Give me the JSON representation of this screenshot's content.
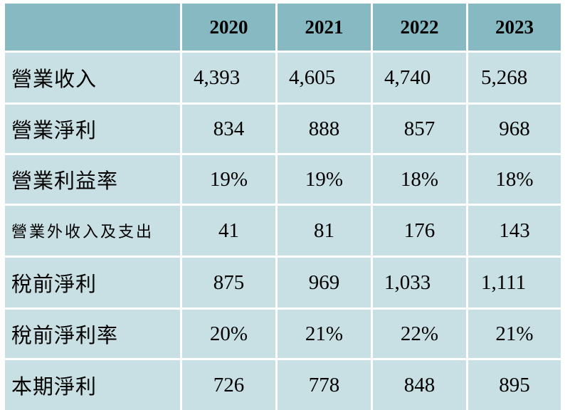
{
  "table": {
    "header": [
      "",
      "2020",
      "2021",
      "2022",
      "2023"
    ],
    "rows": [
      {
        "label": "營業收入",
        "values": [
          "4,393",
          "4,605",
          "4,740",
          "5,268"
        ]
      },
      {
        "label": "營業淨利",
        "values": [
          "834",
          "888",
          "857",
          "968"
        ]
      },
      {
        "label": "營業利益率",
        "values": [
          "19%",
          "19%",
          "18%",
          "18%"
        ]
      },
      {
        "label": "營業外收入及支出",
        "values": [
          "41",
          "81",
          "176",
          "143"
        ]
      },
      {
        "label": "稅前淨利",
        "values": [
          "875",
          "969",
          "1,033",
          "1,111"
        ]
      },
      {
        "label": "稅前淨利率",
        "values": [
          "20%",
          "21%",
          "22%",
          "21%"
        ]
      },
      {
        "label": "本期淨利",
        "values": [
          "726",
          "778",
          "848",
          "895"
        ]
      }
    ]
  },
  "colors": {
    "header_bg": "#87b9c3",
    "cell_bg": "#c8e0e3"
  }
}
